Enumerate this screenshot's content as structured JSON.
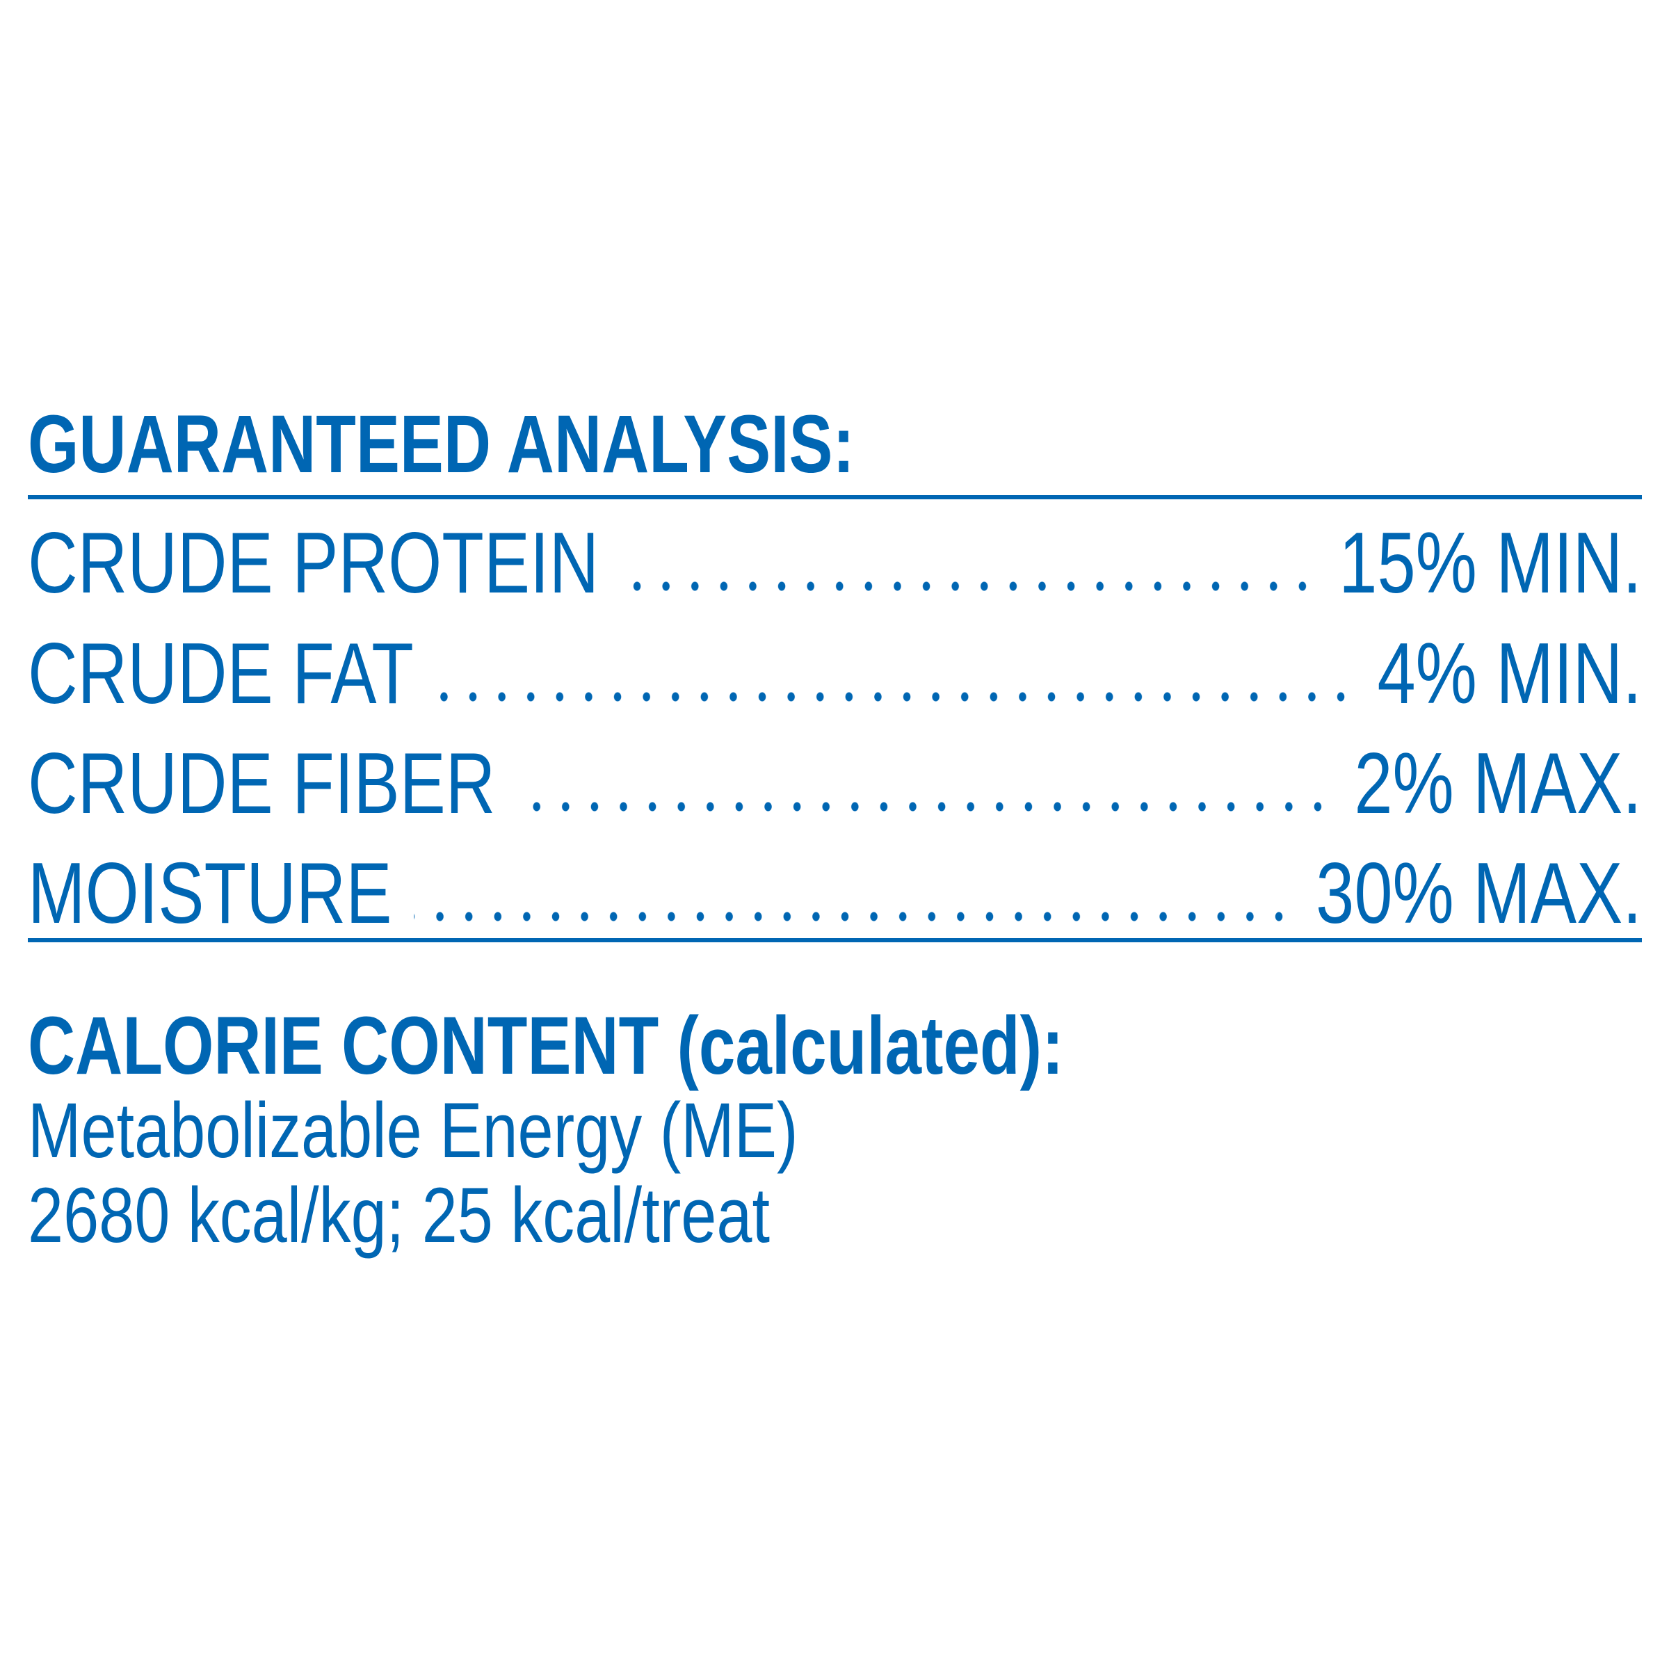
{
  "accent_color": "#0066b3",
  "guaranteed_analysis": {
    "title": "GUARANTEED ANALYSIS:",
    "rows": [
      {
        "label": "CRUDE PROTEIN",
        "value": "15% MIN."
      },
      {
        "label": "CRUDE FAT",
        "value": "4% MIN."
      },
      {
        "label": "CRUDE FIBER",
        "value": "2% MAX."
      },
      {
        "label": "MOISTURE",
        "value": "30% MAX."
      }
    ]
  },
  "calorie_content": {
    "title": "CALORIE CONTENT (calculated):",
    "line1": "Metabolizable Energy (ME)",
    "line2": "2680 kcal/kg; 25 kcal/treat"
  }
}
